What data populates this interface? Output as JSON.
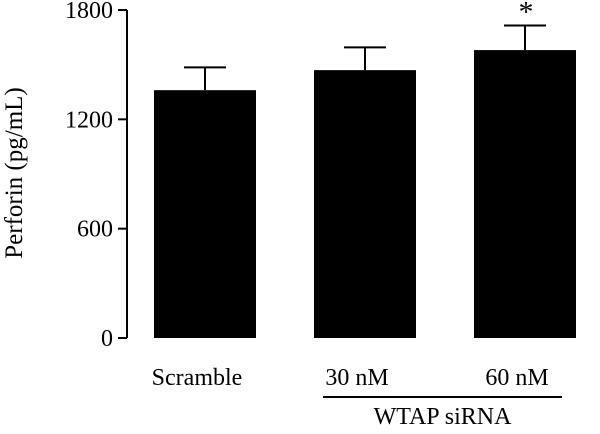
{
  "chart_data": {
    "type": "bar",
    "title": "",
    "xlabel": "",
    "ylabel": "Perforin (pg/mL)",
    "ylim": [
      0,
      1800
    ],
    "yticks": [
      0,
      600,
      1200,
      1800
    ],
    "grid": false,
    "bar_color": "#000000",
    "categories": [
      "Scramble",
      "30 nM",
      "60 nM"
    ],
    "values": [
      1360,
      1470,
      1580
    ],
    "errors": [
      125,
      125,
      135
    ],
    "annotations": [
      {
        "category": "60 nM",
        "text": "*"
      }
    ],
    "group_label": {
      "text": "WTAP siRNA",
      "categories": [
        "30 nM",
        "60 nM"
      ]
    }
  }
}
